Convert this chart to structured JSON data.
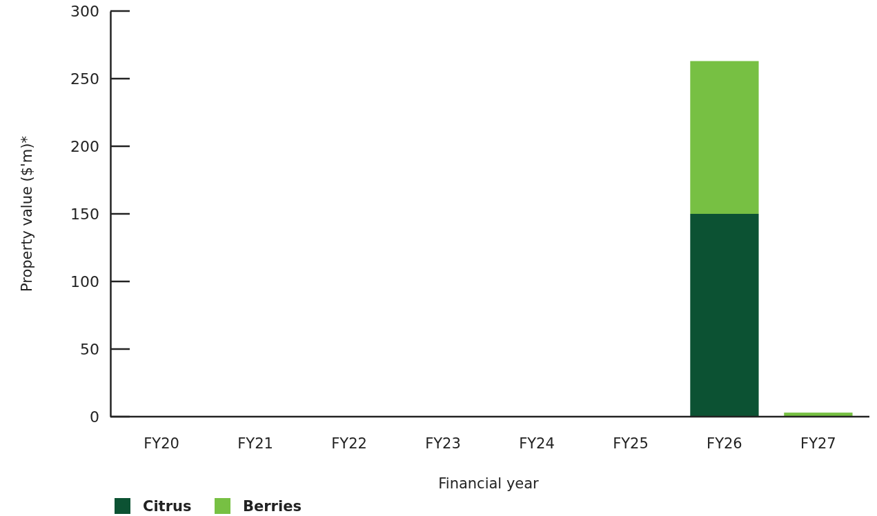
{
  "chart_data": {
    "type": "bar",
    "stacked": true,
    "xlabel": "Financial year",
    "ylabel": "Property value ($'m)*",
    "categories": [
      "FY20",
      "FY21",
      "FY22",
      "FY23",
      "FY24",
      "FY25",
      "FY26",
      "FY27"
    ],
    "series": [
      {
        "name": "Citrus",
        "color": "#0c5233",
        "values": [
          0,
          0,
          0,
          0,
          0,
          0,
          150,
          0
        ]
      },
      {
        "name": "Berries",
        "color": "#77c043",
        "values": [
          0,
          0,
          0,
          0,
          0,
          0,
          113,
          3
        ]
      }
    ],
    "ylim": [
      0,
      300
    ],
    "yticks": [
      0,
      50,
      100,
      150,
      200,
      250,
      300
    ],
    "grid": false,
    "legend": "bottom left"
  }
}
